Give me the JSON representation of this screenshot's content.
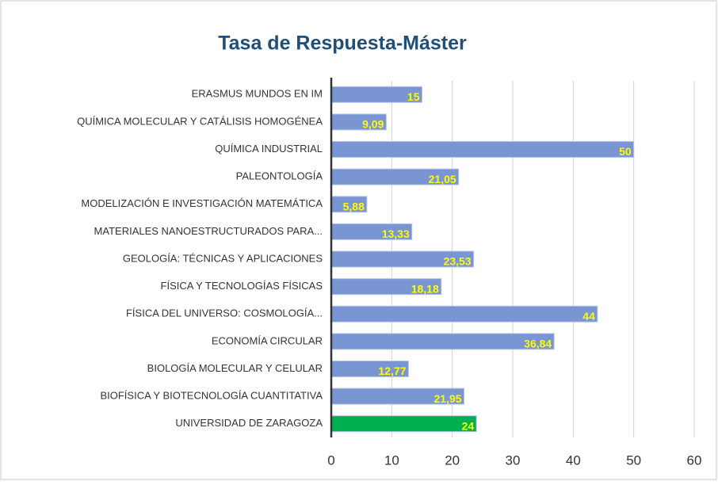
{
  "chart_data": {
    "type": "barh",
    "title": "Tasa de Respuesta-Máster",
    "categories": [
      "ERASMUS MUNDOS EN IM",
      "QUÍMICA MOLECULAR Y CATÁLISIS HOMOGÉNEA",
      "QUÍMICA INDUSTRIAL",
      "PALEONTOLOGÍA",
      "MODELIZACIÓN E INVESTIGACIÓN MATEMÁTICA",
      "MATERIALES NANOESTRUCTURADOS PARA...",
      "GEOLOGÍA: TÉCNICAS Y APLICACIONES",
      "FÍSICA Y TECNOLOGÍAS FÍSICAS",
      "FÍSICA DEL UNIVERSO: COSMOLOGÍA...",
      "ECONOMÍA CIRCULAR",
      "BIOLOGÍA MOLECULAR Y CELULAR",
      "BIOFÍSICA Y BIOTECNOLOGÍA CUANTITATIVA",
      "UNIVERSIDAD DE ZARAGOZA"
    ],
    "values": [
      15,
      9.09,
      50,
      21.05,
      5.88,
      13.33,
      23.53,
      18.18,
      44,
      36.84,
      12.77,
      21.95,
      24
    ],
    "value_labels": [
      "15",
      "9,09",
      "50",
      "21,05",
      "5,88",
      "13,33",
      "23,53",
      "18,18",
      "44",
      "36,84",
      "12,77",
      "21,95",
      "24"
    ],
    "colors": [
      "#7a96d2",
      "#7a96d2",
      "#7a96d2",
      "#7a96d2",
      "#7a96d2",
      "#7a96d2",
      "#7a96d2",
      "#7a96d2",
      "#7a96d2",
      "#7a96d2",
      "#7a96d2",
      "#7a96d2",
      "#00b050"
    ],
    "xlim": [
      0,
      60
    ],
    "xticks": [
      0,
      10,
      20,
      30,
      40,
      50,
      60
    ],
    "grid": true
  }
}
